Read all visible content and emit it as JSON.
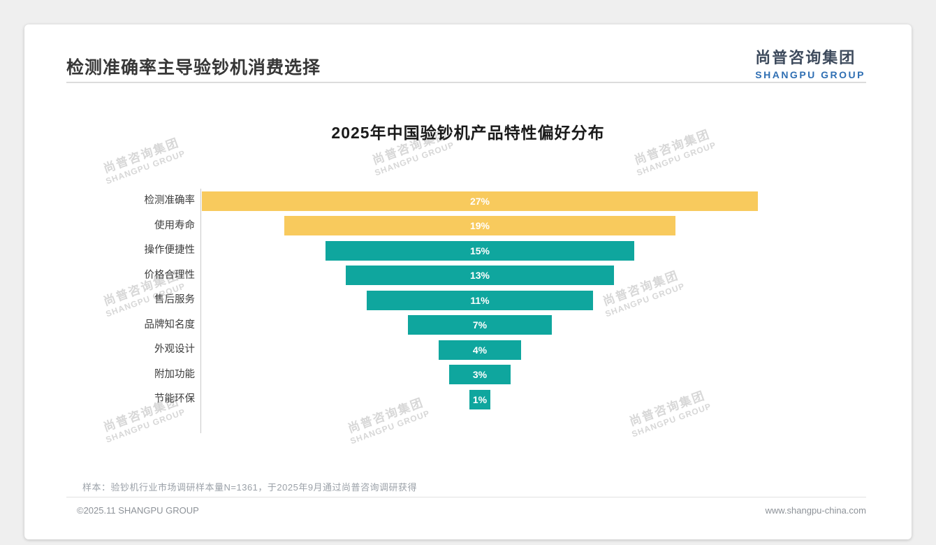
{
  "header": {
    "title": "检测准确率主导验钞机消费选择"
  },
  "logo": {
    "cn": "尚普咨询集团",
    "en": "SHANGPU GROUP"
  },
  "watermark": {
    "cn": "尚普咨询集团",
    "en": "SHANGPU GROUP"
  },
  "chart_data": {
    "type": "bar",
    "variant": "centered-horizontal-funnel",
    "title": "2025年中国验钞机产品特性偏好分布",
    "categories": [
      "检测准确率",
      "使用寿命",
      "操作便捷性",
      "价格合理性",
      "售后服务",
      "品牌知名度",
      "外观设计",
      "附加功能",
      "节能环保"
    ],
    "values": [
      27,
      19,
      15,
      13,
      11,
      7,
      4,
      3,
      1
    ],
    "value_suffix": "%",
    "bar_colors": [
      "#F8CA5D",
      "#F8CA5D",
      "#0FA69E",
      "#0FA69E",
      "#0FA69E",
      "#0FA69E",
      "#0FA69E",
      "#0FA69E",
      "#0FA69E"
    ],
    "value_label_color": "#ffffff",
    "xlim_percent": [
      0,
      27
    ],
    "legend": "none",
    "grid": "off"
  },
  "footnote": "样本：验钞机行业市场调研样本量N=1361，于2025年9月通过尚普咨询调研获得",
  "footer": {
    "left": "©2025.11 SHANGPU GROUP",
    "right": "www.shangpu-china.com"
  }
}
